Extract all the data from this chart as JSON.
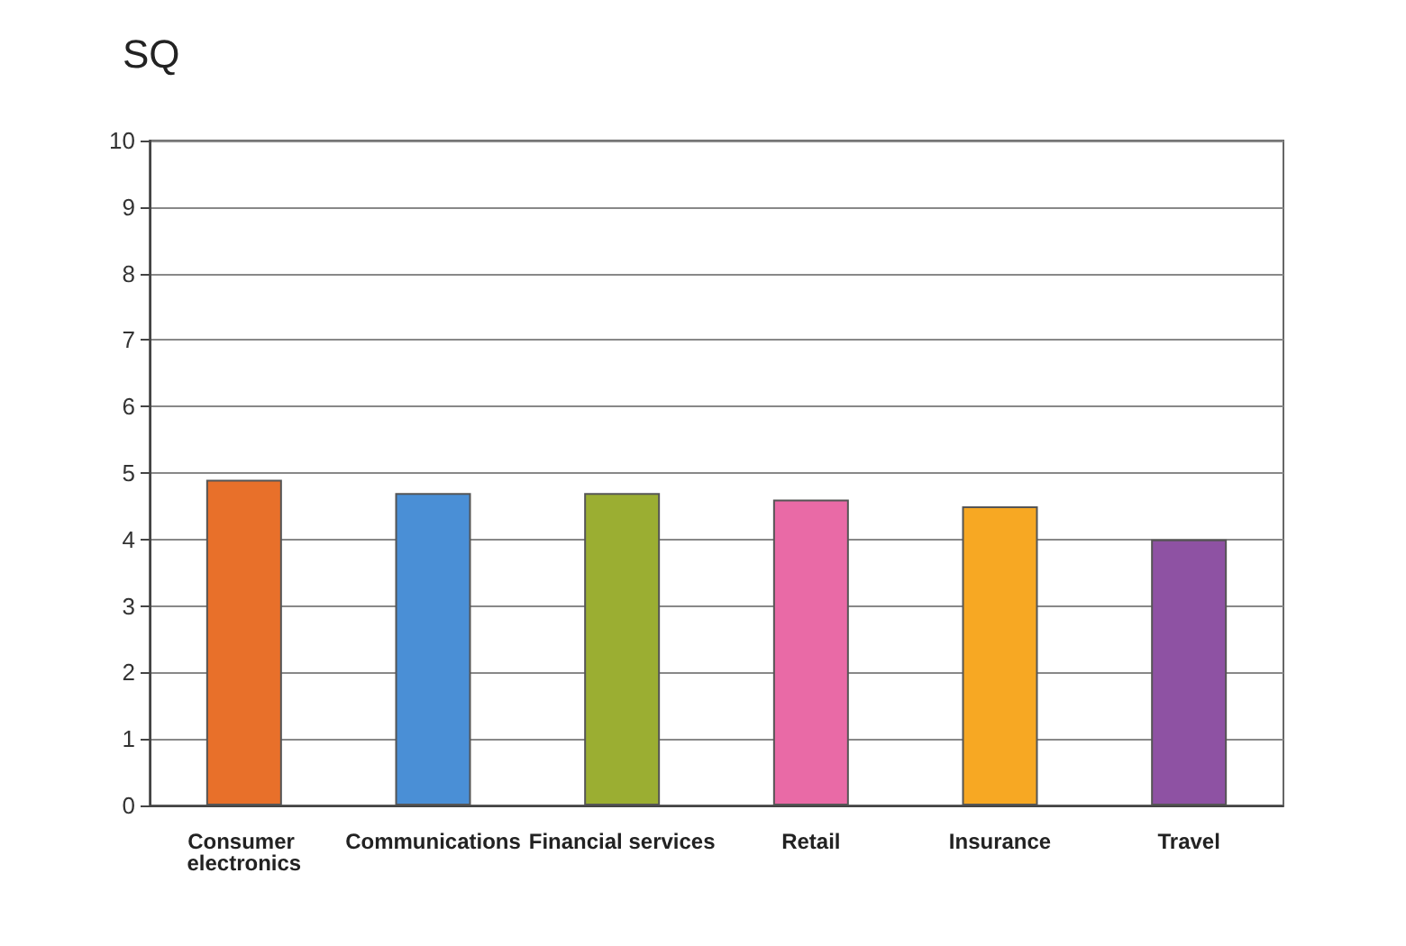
{
  "chart_data": {
    "type": "bar",
    "title": "SQ",
    "categories": [
      "Consumer electronics",
      "Communications",
      "Financial services",
      "Retail",
      "Insurance",
      "Travel"
    ],
    "values": [
      4.9,
      4.7,
      4.7,
      4.6,
      4.5,
      4.0
    ],
    "colors": [
      "#e8702a",
      "#4a8fd6",
      "#9bae32",
      "#e96aa6",
      "#f7a823",
      "#8e52a3"
    ],
    "ylim": [
      0,
      10
    ],
    "yticks": [
      0,
      1,
      2,
      3,
      4,
      5,
      6,
      7,
      8,
      9,
      10
    ],
    "grid": "y"
  }
}
